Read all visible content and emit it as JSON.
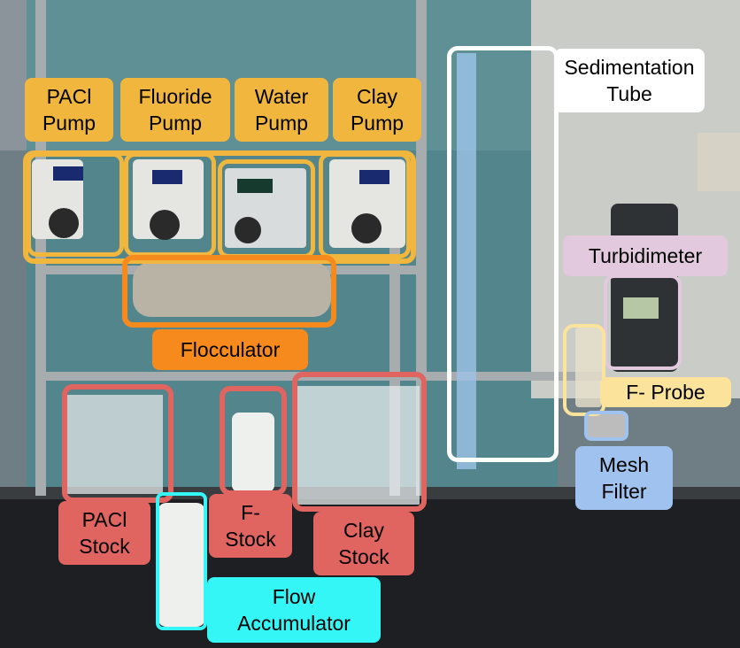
{
  "colors": {
    "pump_label": "#f0b63d",
    "stock_label": "#e0645f",
    "flocculator_label": "#f78a1c",
    "sedimentation": "#ffffff",
    "turbidimeter": "#e2c9de",
    "fluoride_probe": "#fbe39c",
    "mesh_filter": "#9fc2ee",
    "flow_accumulator": "#35f6f6"
  },
  "labels": {
    "pacl_pump": "PACl\nPump",
    "fluoride_pump": "Fluoride\nPump",
    "water_pump": "Water\nPump",
    "clay_pump": "Clay\nPump",
    "sedimentation_tube": "Sedimentation\nTube",
    "turbidimeter": "Turbidimeter",
    "flocculator": "Flocculator",
    "fluoride_probe": "F- Probe",
    "mesh_filter": "Mesh\nFilter",
    "pacl_stock": "PACl\nStock",
    "fluoride_stock": "F-\nStock",
    "clay_stock": "Clay\nStock",
    "flow_accumulator": "Flow\nAccumulator"
  }
}
